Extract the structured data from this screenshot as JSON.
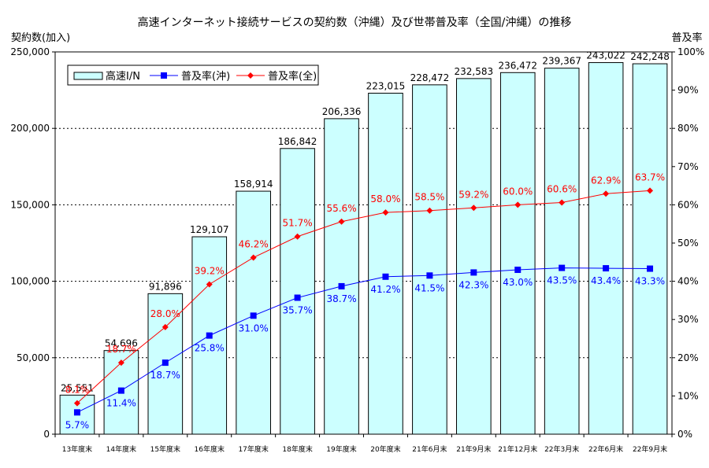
{
  "chart_data": {
    "type": "bar",
    "title": "高速インターネット接続サービスの契約数（沖縄）及び世帯普及率（全国/沖縄）の推移",
    "ylabel": "契約数(加入)",
    "y2label": "普及率",
    "ylim": [
      0,
      250000
    ],
    "y2lim": [
      0,
      100
    ],
    "y_ticks": [
      "0",
      "50,000",
      "100,000",
      "150,000",
      "200,000",
      "250,000"
    ],
    "y2_ticks": [
      "0%",
      "10%",
      "20%",
      "30%",
      "40%",
      "50%",
      "60%",
      "70%",
      "80%",
      "90%",
      "100%"
    ],
    "grid": "horizontal dotted",
    "legend_position": "top-left",
    "categories": [
      "13年度末",
      "14年度末",
      "15年度末",
      "16年度末",
      "17年度末",
      "18年度末",
      "19年度末",
      "20年度末",
      "21年6月末",
      "21年9月末",
      "21年12月末",
      "22年3月末",
      "22年6月末",
      "22年9月末"
    ],
    "series": [
      {
        "name": "高速I/N",
        "type": "bar",
        "axis": "left",
        "color": "#ccffff",
        "values": [
          25551,
          54696,
          91896,
          129107,
          158914,
          186842,
          206336,
          223015,
          228472,
          232583,
          236472,
          239367,
          243022,
          242248
        ],
        "labels": [
          "25,551",
          "54,696",
          "91,896",
          "129,107",
          "158,914",
          "186,842",
          "206,336",
          "223,015",
          "228,472",
          "232,583",
          "236,472",
          "239,367",
          "243,022",
          "242,248"
        ]
      },
      {
        "name": "普及率(沖)",
        "type": "line",
        "axis": "right",
        "color": "#0000ff",
        "marker": "square",
        "values": [
          5.7,
          11.4,
          18.7,
          25.8,
          31.0,
          35.7,
          38.7,
          41.2,
          41.5,
          42.3,
          43.0,
          43.5,
          43.4,
          43.3
        ],
        "labels": [
          "5.7%",
          "11.4%",
          "18.7%",
          "25.8%",
          "31.0%",
          "35.7%",
          "38.7%",
          "41.2%",
          "41.5%",
          "42.3%",
          "43.0%",
          "43.5%",
          "43.4%",
          "43.3%"
        ]
      },
      {
        "name": "普及率(全)",
        "type": "line",
        "axis": "right",
        "color": "#ff0000",
        "marker": "diamond",
        "values": [
          8.1,
          18.7,
          28.0,
          39.2,
          46.2,
          51.7,
          55.6,
          58.0,
          58.5,
          59.2,
          60.0,
          60.6,
          62.9,
          63.7
        ],
        "labels": [
          "8.1%",
          "18.7%",
          "28.0%",
          "39.2%",
          "46.2%",
          "51.7%",
          "55.6%",
          "58.0%",
          "58.5%",
          "59.2%",
          "60.0%",
          "60.6%",
          "62.9%",
          "63.7%"
        ]
      }
    ]
  }
}
